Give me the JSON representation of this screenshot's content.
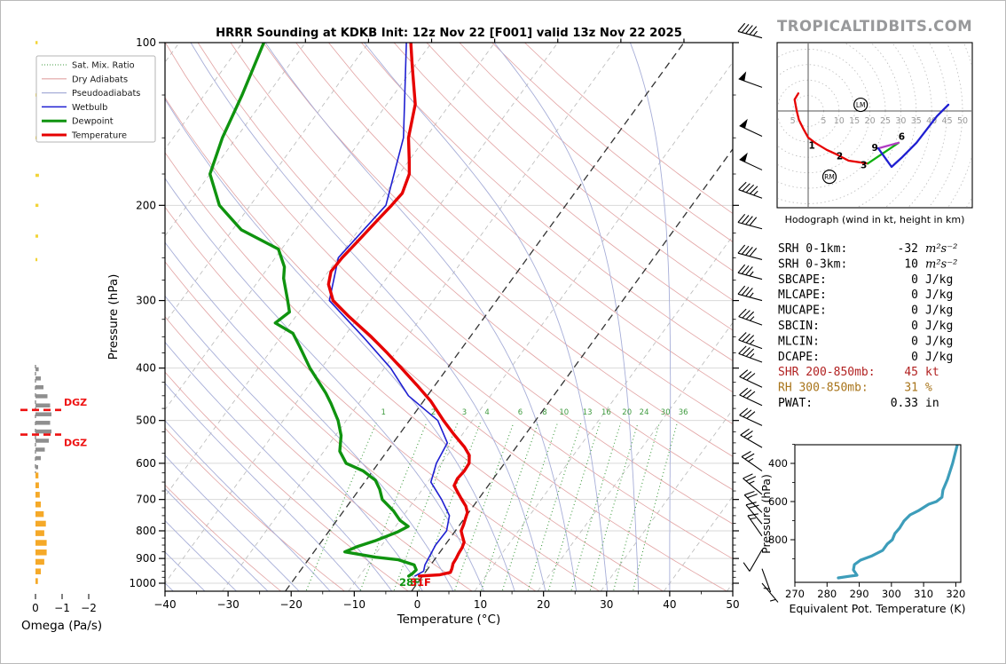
{
  "meta": {
    "title": "HRRR Sounding at KDKB Init: 12z Nov 22 [F001] valid 13z Nov 22 2025",
    "watermark": "TROPICALTIDBITS.COM"
  },
  "legend": {
    "items": [
      {
        "label": "Sat. Mix. Ratio",
        "style": "dotted-green"
      },
      {
        "label": "Dry Adiabats",
        "style": "pink"
      },
      {
        "label": "Pseudoadiabats",
        "style": "lavender"
      },
      {
        "label": "Wetbulb",
        "style": "blue"
      },
      {
        "label": "Dewpoint",
        "style": "green-thick"
      },
      {
        "label": "Temperature",
        "style": "red-thick"
      }
    ]
  },
  "stats": {
    "rows": [
      {
        "label": "SRH 0-1km:",
        "value": "-32",
        "unit": "m²s⁻²",
        "color": "#000000",
        "unit_italic": true
      },
      {
        "label": "SRH 0-3km:",
        "value": "10",
        "unit": "m²s⁻²",
        "color": "#000000",
        "unit_italic": true
      },
      {
        "label": "SBCAPE:",
        "value": "0",
        "unit": "J/kg",
        "color": "#000000",
        "unit_italic": false
      },
      {
        "label": "MLCAPE:",
        "value": "0",
        "unit": "J/kg",
        "color": "#000000",
        "unit_italic": false
      },
      {
        "label": "MUCAPE:",
        "value": "0",
        "unit": "J/kg",
        "color": "#000000",
        "unit_italic": false
      },
      {
        "label": "SBCIN:",
        "value": "0",
        "unit": "J/kg",
        "color": "#000000",
        "unit_italic": false
      },
      {
        "label": "MLCIN:",
        "value": "0",
        "unit": "J/kg",
        "color": "#000000",
        "unit_italic": false
      },
      {
        "label": "DCAPE:",
        "value": "0",
        "unit": "J/kg",
        "color": "#000000",
        "unit_italic": false
      },
      {
        "label": "SHR 200-850mb:",
        "value": "45",
        "unit": "kt",
        "color": "#b22222",
        "unit_italic": false
      },
      {
        "label": "RH 300-850mb:",
        "value": "31",
        "unit": "%",
        "color": "#a8741a",
        "unit_italic": false
      },
      {
        "label": "PWAT:",
        "value": "0.33",
        "unit": "in",
        "color": "#000000",
        "unit_italic": false
      }
    ]
  },
  "chart_data": {
    "type": "skewt-sounding",
    "skewt": {
      "xlabel": "Temperature (°C)",
      "ylabel": "Pressure (hPa)",
      "x_ticks": [
        -40,
        -30,
        -20,
        -10,
        0,
        10,
        20,
        30,
        40,
        50
      ],
      "p_ticks": [
        100,
        200,
        300,
        400,
        500,
        600,
        700,
        800,
        900,
        1000
      ],
      "xlim": [
        -40,
        50
      ],
      "plim": [
        100,
        1040
      ],
      "isotherm_step": 10,
      "highlight_isotherms": [
        0,
        -20
      ],
      "mixing_ratio_values": [
        1,
        2,
        3,
        4,
        6,
        8,
        10,
        13,
        16,
        20,
        24,
        30,
        36
      ],
      "surface_temp_label": "31F",
      "surface_dewpoint_label": "28F",
      "dgz": {
        "label": "DGZ",
        "levels_hpa": [
          478,
          531
        ]
      },
      "temperature_profile": [
        [
          100,
          -63.3
        ],
        [
          110,
          -60.5
        ],
        [
          130,
          -55.5
        ],
        [
          150,
          -52.7
        ],
        [
          165,
          -50
        ],
        [
          175,
          -48.4
        ],
        [
          190,
          -47.3
        ],
        [
          200,
          -47.6
        ],
        [
          215,
          -48.2
        ],
        [
          235,
          -48.9
        ],
        [
          250,
          -49.4
        ],
        [
          265,
          -49.6
        ],
        [
          280,
          -48.5
        ],
        [
          300,
          -45.9
        ],
        [
          320,
          -41.8
        ],
        [
          350,
          -35.7
        ],
        [
          375,
          -31.3
        ],
        [
          400,
          -27.3
        ],
        [
          430,
          -22.9
        ],
        [
          460,
          -18.9
        ],
        [
          500,
          -14.6
        ],
        [
          530,
          -11.4
        ],
        [
          560,
          -8.2
        ],
        [
          580,
          -6.5
        ],
        [
          600,
          -5.6
        ],
        [
          620,
          -5.5
        ],
        [
          640,
          -5.7
        ],
        [
          660,
          -5.4
        ],
        [
          680,
          -4
        ],
        [
          700,
          -2.6
        ],
        [
          720,
          -1.2
        ],
        [
          740,
          -0.2
        ],
        [
          760,
          0.2
        ],
        [
          780,
          0.6
        ],
        [
          800,
          0.9
        ],
        [
          820,
          1.8
        ],
        [
          840,
          2.7
        ],
        [
          860,
          3
        ],
        [
          880,
          3.1
        ],
        [
          900,
          3.3
        ],
        [
          920,
          3.4
        ],
        [
          940,
          3.8
        ],
        [
          955,
          4
        ],
        [
          965,
          2.5
        ],
        [
          970,
          -0.5
        ]
      ],
      "dewpoint_profile": [
        [
          100,
          -86.6
        ],
        [
          125,
          -84
        ],
        [
          150,
          -82.2
        ],
        [
          175,
          -80
        ],
        [
          200,
          -74.9
        ],
        [
          222,
          -68.6
        ],
        [
          241,
          -60.5
        ],
        [
          260,
          -57.5
        ],
        [
          273,
          -56.3
        ],
        [
          300,
          -53.1
        ],
        [
          315,
          -51.5
        ],
        [
          330,
          -52.5
        ],
        [
          345,
          -48.5
        ],
        [
          365,
          -45.9
        ],
        [
          400,
          -41.8
        ],
        [
          445,
          -36.4
        ],
        [
          465,
          -34.4
        ],
        [
          500,
          -31.3
        ],
        [
          533,
          -29.1
        ],
        [
          570,
          -27.5
        ],
        [
          600,
          -25.1
        ],
        [
          620,
          -21.5
        ],
        [
          645,
          -18.5
        ],
        [
          670,
          -16.8
        ],
        [
          700,
          -15.2
        ],
        [
          735,
          -12.1
        ],
        [
          765,
          -10
        ],
        [
          785,
          -8
        ],
        [
          805,
          -9.1
        ],
        [
          835,
          -11.6
        ],
        [
          855,
          -13.7
        ],
        [
          875,
          -15.1
        ],
        [
          895,
          -9.6
        ],
        [
          905,
          -5.7
        ],
        [
          925,
          -2.6
        ],
        [
          945,
          -1.7
        ],
        [
          960,
          -1.9
        ],
        [
          970,
          -2.2
        ]
      ],
      "wetbulb_profile": [
        [
          100,
          -64
        ],
        [
          150,
          -53.5
        ],
        [
          200,
          -48.5
        ],
        [
          250,
          -50
        ],
        [
          300,
          -46.5
        ],
        [
          350,
          -37
        ],
        [
          400,
          -29
        ],
        [
          450,
          -23
        ],
        [
          500,
          -15.5
        ],
        [
          550,
          -11.4
        ],
        [
          600,
          -10.8
        ],
        [
          650,
          -9.5
        ],
        [
          700,
          -5.8
        ],
        [
          750,
          -2.7
        ],
        [
          800,
          -1.4
        ],
        [
          850,
          -1.5
        ],
        [
          900,
          -1.1
        ],
        [
          925,
          -0.9
        ],
        [
          950,
          -0.4
        ],
        [
          970,
          -1.2
        ]
      ],
      "wind_barbs": [
        [
          98,
          45,
          285
        ],
        [
          121,
          50,
          290
        ],
        [
          149,
          50,
          295
        ],
        [
          172,
          50,
          295
        ],
        [
          194,
          45,
          290
        ],
        [
          221,
          40,
          285
        ],
        [
          252,
          40,
          285
        ],
        [
          274,
          35,
          285
        ],
        [
          300,
          35,
          285
        ],
        [
          333,
          35,
          290
        ],
        [
          368,
          35,
          290
        ],
        [
          390,
          35,
          290
        ],
        [
          434,
          30,
          295
        ],
        [
          469,
          30,
          295
        ],
        [
          511,
          30,
          295
        ],
        [
          561,
          25,
          300
        ],
        [
          620,
          25,
          305
        ],
        [
          685,
          25,
          310
        ],
        [
          740,
          20,
          315
        ],
        [
          777,
          20,
          320
        ],
        [
          818,
          15,
          325
        ],
        [
          867,
          10,
          210
        ],
        [
          940,
          5,
          160
        ],
        [
          1000,
          5,
          140
        ]
      ]
    },
    "omega": {
      "label": "Omega (Pa/s)",
      "ticks": [
        0,
        -1,
        -2
      ],
      "bars": [
        [
          100,
          -0.08,
          "yellow"
        ],
        [
          125,
          -0.1,
          "yellow"
        ],
        [
          150,
          -0.09,
          "yellow"
        ],
        [
          176,
          -0.13,
          "yellow"
        ],
        [
          200,
          -0.11,
          "yellow"
        ],
        [
          228,
          -0.1,
          "yellow"
        ],
        [
          252,
          -0.07,
          "yellow"
        ],
        [
          402,
          -0.12,
          "gray"
        ],
        [
          418,
          -0.2,
          "gray"
        ],
        [
          434,
          -0.3,
          "gray"
        ],
        [
          451,
          -0.45,
          "gray"
        ],
        [
          469,
          -0.55,
          "gray"
        ],
        [
          487,
          -0.6,
          "gray"
        ],
        [
          505,
          -0.55,
          "gray"
        ],
        [
          524,
          -0.6,
          "gray"
        ],
        [
          545,
          -0.5,
          "gray"
        ],
        [
          566,
          -0.35,
          "gray"
        ],
        [
          587,
          -0.2,
          "gray"
        ],
        [
          610,
          -0.1,
          "gray"
        ],
        [
          632,
          -0.11,
          "orange"
        ],
        [
          659,
          -0.13,
          "orange"
        ],
        [
          686,
          -0.16,
          "orange"
        ],
        [
          715,
          -0.2,
          "orange"
        ],
        [
          745,
          -0.31,
          "orange"
        ],
        [
          776,
          -0.39,
          "orange"
        ],
        [
          808,
          -0.33,
          "orange"
        ],
        [
          842,
          -0.42,
          "orange"
        ],
        [
          877,
          -0.42,
          "orange"
        ],
        [
          913,
          -0.33,
          "orange"
        ],
        [
          951,
          -0.2,
          "orange"
        ],
        [
          991,
          -0.09,
          "orange"
        ]
      ],
      "bar_colors": {
        "yellow": "#f2d438",
        "gray": "#8f8f8f",
        "orange": "#f5a928"
      }
    },
    "hodograph": {
      "caption": "Hodograph (wind in kt, height in km)",
      "ring_step_kt": 5,
      "ring_labels": [
        5,
        10,
        15,
        20,
        25,
        30,
        35,
        40,
        45,
        50
      ],
      "left_label": "5",
      "segments": [
        {
          "color": "#e60000",
          "points": [
            [
              -3.2,
              5.7
            ],
            [
              -4.4,
              3.7
            ],
            [
              -3.7,
              0
            ],
            [
              -3,
              -2.9
            ],
            [
              -1.6,
              -5.7
            ],
            [
              0,
              -8.6
            ],
            [
              2.2,
              -10.3
            ],
            [
              6,
              -12.6
            ],
            [
              9.3,
              -14.1
            ],
            [
              13.1,
              -16.1
            ],
            [
              19.3,
              -17
            ]
          ]
        },
        {
          "color": "#0faf0f",
          "points": [
            [
              19.3,
              -17
            ],
            [
              29.3,
              -10.3
            ]
          ]
        },
        {
          "color": "#b13cc4",
          "points": [
            [
              29.3,
              -10.3
            ],
            [
              22.7,
              -12.1
            ]
          ]
        },
        {
          "color": "#1f1fd1",
          "points": [
            [
              22.7,
              -12.1
            ],
            [
              27,
              -18.1
            ],
            [
              30.2,
              -15.2
            ],
            [
              35.1,
              -10.3
            ],
            [
              38.8,
              -5.5
            ],
            [
              41.7,
              -1.7
            ],
            [
              45.4,
              2
            ]
          ]
        }
      ],
      "height_labels": [
        {
          "text": "1",
          "u": 1.2,
          "v": -12.2
        },
        {
          "text": "2",
          "u": 10.2,
          "v": -15.6
        },
        {
          "text": "3",
          "u": 18,
          "v": -18.6
        },
        {
          "text": "6",
          "u": 30.3,
          "v": -9.3
        },
        {
          "text": "9",
          "u": 21.6,
          "v": -13
        }
      ],
      "markers": [
        {
          "text": "LM",
          "u": 17,
          "v": 2
        },
        {
          "text": "RM",
          "u": 6.9,
          "v": -21.3
        }
      ]
    },
    "theta_e": {
      "xlabel": "Equivalent Pot. Temperature (K)",
      "ylabel": "Pressure (hPa)",
      "x_ticks": [
        270,
        280,
        290,
        300,
        310,
        320
      ],
      "p_ticks": [
        400,
        600,
        800
      ],
      "color": "#3d9dba",
      "profile": [
        [
          320.4,
          307
        ],
        [
          319,
          400
        ],
        [
          317.4,
          484
        ],
        [
          316,
          540
        ],
        [
          315.7,
          577
        ],
        [
          314,
          600
        ],
        [
          311.6,
          614
        ],
        [
          308.6,
          646
        ],
        [
          305.8,
          670
        ],
        [
          303.9,
          702
        ],
        [
          302.5,
          740
        ],
        [
          301.1,
          767
        ],
        [
          300.3,
          800
        ],
        [
          298.7,
          823
        ],
        [
          297.3,
          856
        ],
        [
          294,
          884
        ],
        [
          290.4,
          907
        ],
        [
          288.5,
          930
        ],
        [
          288.2,
          958
        ],
        [
          289.3,
          986
        ],
        [
          287.1,
          991
        ],
        [
          283.5,
          1000
        ]
      ]
    }
  }
}
